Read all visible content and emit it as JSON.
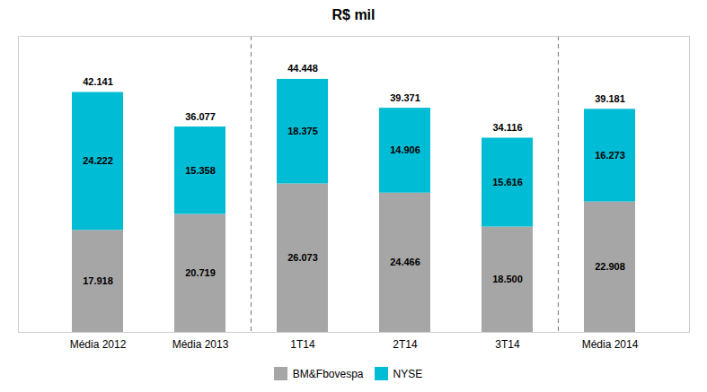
{
  "chart_data": {
    "type": "bar",
    "title": "R$ mil",
    "stacked": true,
    "categories": [
      "Média 2012",
      "Média 2013",
      "1T14",
      "2T14",
      "3T14",
      "Média 2014"
    ],
    "series": [
      {
        "name": "BM&Fbovespa",
        "color": "#a6a6a6",
        "values": [
          17918,
          20719,
          26073,
          24466,
          18500,
          22908
        ],
        "value_labels": [
          "17.918",
          "20.719",
          "26.073",
          "24.466",
          "18.500",
          "22.908"
        ]
      },
      {
        "name": "NYSE",
        "color": "#00bcd4",
        "values": [
          24222,
          15358,
          18375,
          14906,
          15616,
          16273
        ],
        "value_labels": [
          "24.222",
          "15.358",
          "18.375",
          "14.906",
          "15.616",
          "16.273"
        ]
      }
    ],
    "totals": [
      42141,
      36077,
      44448,
      39371,
      34116,
      39181
    ],
    "total_labels": [
      "42.141",
      "36.077",
      "44.448",
      "39.371",
      "34.116",
      "39.181"
    ],
    "dividers": [
      1.5,
      4.5
    ],
    "ylim": [
      0,
      52000
    ],
    "yticks": [],
    "tick_labels": "x",
    "grid": false,
    "legend": "bottom",
    "data_labels": true
  }
}
